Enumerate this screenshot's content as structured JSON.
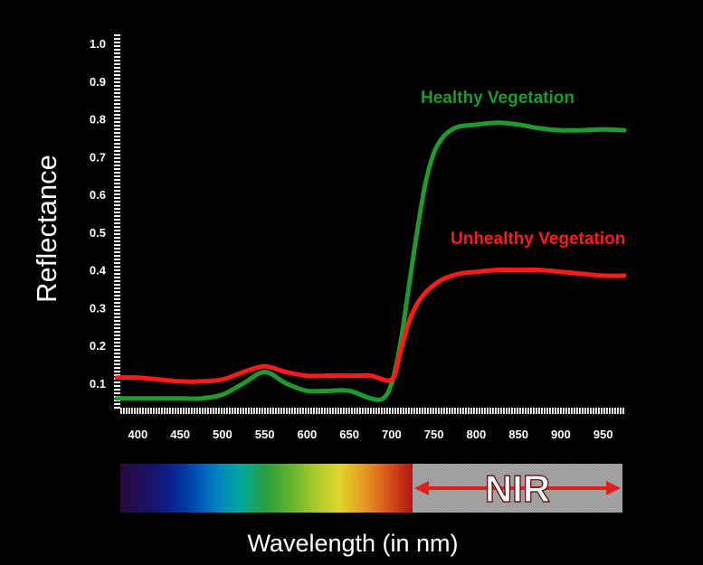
{
  "chart_data": {
    "type": "line",
    "ylabel": "Reflectance",
    "xlabel": "Wavelength (in nm)",
    "ylim": [
      0.05,
      1.0
    ],
    "xlim": [
      375,
      975
    ],
    "y_ticks": [
      "0.1",
      "0.2",
      "0.3",
      "0.4",
      "0.5",
      "0.6",
      "0.7",
      "0.8",
      "0.9",
      "1.0"
    ],
    "x_ticks": [
      "400",
      "450",
      "500",
      "550",
      "600",
      "650",
      "700",
      "750",
      "800",
      "850",
      "900",
      "950"
    ],
    "grid": false,
    "series": [
      {
        "name": "Healthy Vegetation",
        "color": "#1f9a2e",
        "x": [
          375,
          400,
          450,
          475,
          500,
          525,
          550,
          575,
          600,
          625,
          650,
          675,
          690,
          700,
          710,
          720,
          730,
          740,
          750,
          760,
          770,
          780,
          800,
          825,
          850,
          875,
          900,
          925,
          950,
          975
        ],
        "y": [
          0.06,
          0.06,
          0.06,
          0.06,
          0.07,
          0.1,
          0.13,
          0.1,
          0.08,
          0.08,
          0.08,
          0.06,
          0.06,
          0.1,
          0.2,
          0.35,
          0.5,
          0.63,
          0.71,
          0.75,
          0.77,
          0.78,
          0.785,
          0.79,
          0.785,
          0.775,
          0.77,
          0.77,
          0.772,
          0.77
        ]
      },
      {
        "name": "Unhealthy Vegetation",
        "color": "#ff1a1a",
        "x": [
          375,
          400,
          450,
          475,
          500,
          525,
          550,
          575,
          600,
          625,
          650,
          675,
          700,
          710,
          720,
          730,
          740,
          750,
          760,
          780,
          800,
          825,
          850,
          875,
          900,
          925,
          950,
          975
        ],
        "y": [
          0.115,
          0.115,
          0.105,
          0.105,
          0.11,
          0.13,
          0.145,
          0.13,
          0.12,
          0.12,
          0.12,
          0.12,
          0.11,
          0.18,
          0.26,
          0.31,
          0.34,
          0.36,
          0.375,
          0.39,
          0.395,
          0.4,
          0.4,
          0.4,
          0.395,
          0.39,
          0.385,
          0.385
        ]
      }
    ]
  },
  "spectrum_bar": {
    "visible_colors": [
      "#2b0a3d",
      "#1d0f5e",
      "#0b1f8a",
      "#0049b0",
      "#0083c2",
      "#00a89a",
      "#2a9e3a",
      "#63b32e",
      "#a7c92a",
      "#e2d52c",
      "#e59a22",
      "#d8531a",
      "#b31414"
    ],
    "nir_label": "NIR",
    "arrow_color": "#e0201a"
  }
}
